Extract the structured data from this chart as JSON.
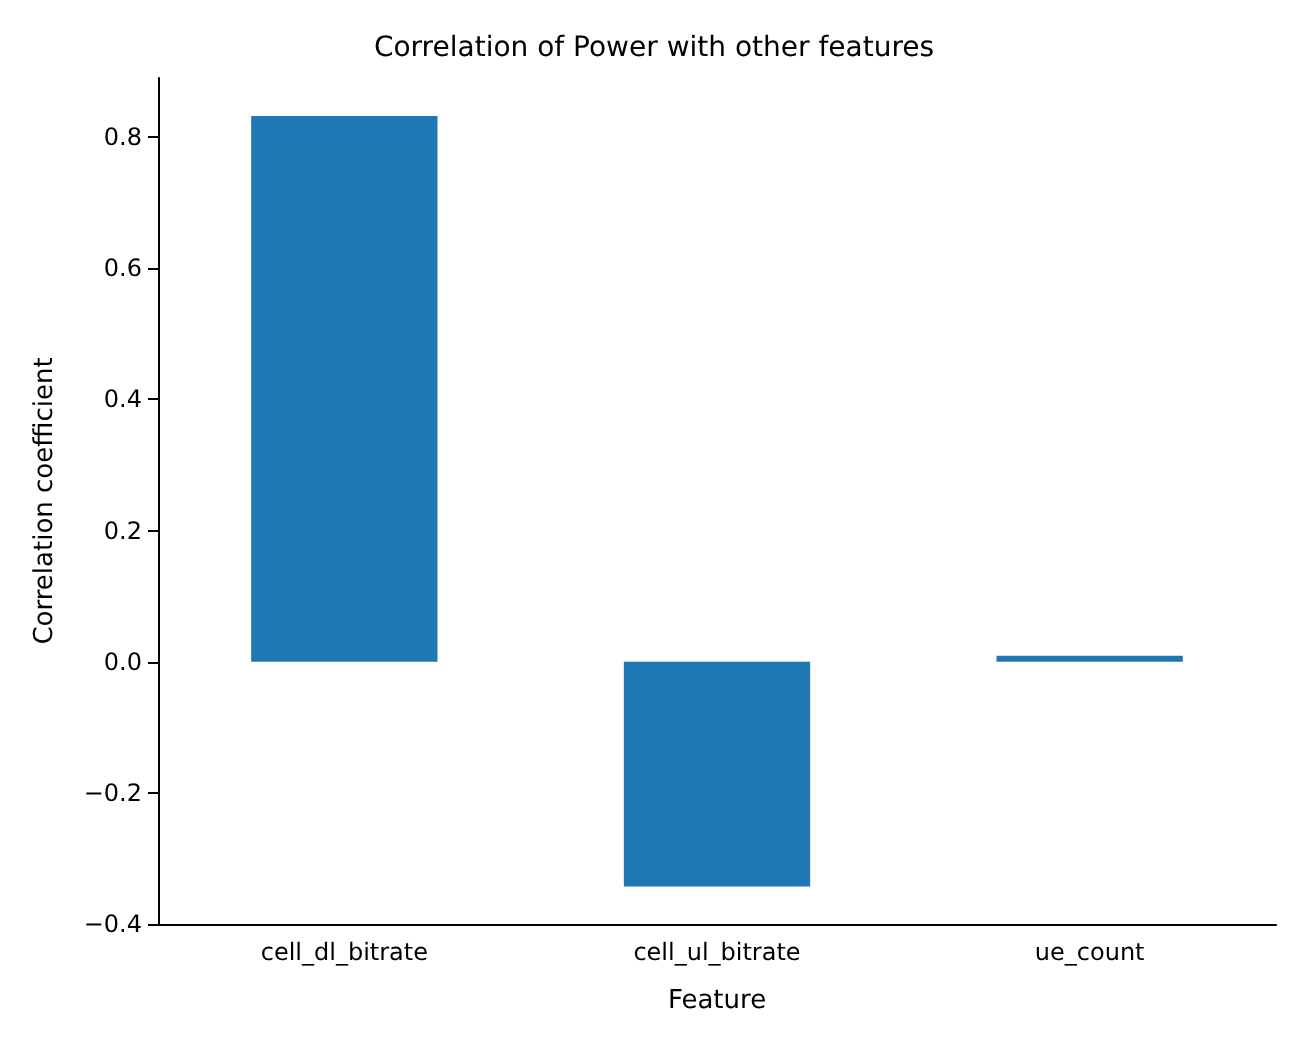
{
  "chart_data": {
    "type": "bar",
    "title": "Correlation of Power with other features",
    "xlabel": "Feature",
    "ylabel": "Correlation coefficient",
    "categories": [
      "cell_dl_bitrate",
      "cell_ul_bitrate",
      "ue_count"
    ],
    "values": [
      0.832,
      -0.343,
      0.009
    ],
    "color": "#1f77b4",
    "ylim": [
      -0.4,
      0.89
    ],
    "yticks": [
      {
        "value": -0.4,
        "label": "−0.4"
      },
      {
        "value": -0.2,
        "label": "−0.2"
      },
      {
        "value": 0,
        "label": "0.0"
      },
      {
        "value": 0.2,
        "label": "0.2"
      },
      {
        "value": 0.4,
        "label": "0.4"
      },
      {
        "value": 0.6,
        "label": "0.6"
      },
      {
        "value": 0.8,
        "label": "0.8"
      }
    ],
    "grid": false
  }
}
